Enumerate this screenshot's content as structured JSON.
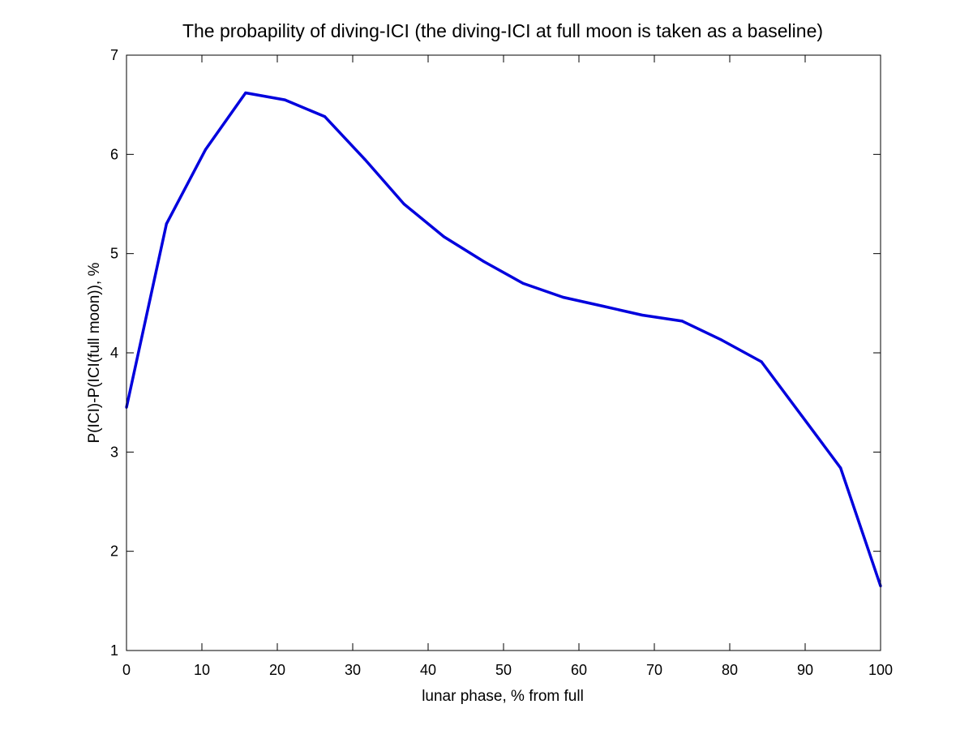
{
  "chart_data": {
    "type": "line",
    "title": "The probapility of diving-ICI (the diving-ICI at full moon is taken as a baseline)",
    "xlabel": "lunar phase, % from full",
    "ylabel": "P(ICI)-P(ICI(full moon)), %",
    "xlim": [
      0,
      100
    ],
    "ylim": [
      1,
      7
    ],
    "xticks": [
      0,
      10,
      20,
      30,
      40,
      50,
      60,
      70,
      80,
      90,
      100
    ],
    "yticks": [
      1,
      2,
      3,
      4,
      5,
      6,
      7
    ],
    "grid": false,
    "series": [
      {
        "name": "P(ICI)-P(ICI(full moon))",
        "color": "#0000dd",
        "x": [
          0,
          5.3,
          10.5,
          15.8,
          21.0,
          26.3,
          31.6,
          36.8,
          42.1,
          47.4,
          52.6,
          57.9,
          63.2,
          68.4,
          73.7,
          78.9,
          84.2,
          89.5,
          94.7,
          100
        ],
        "y": [
          3.45,
          5.3,
          6.05,
          6.62,
          6.55,
          6.38,
          5.95,
          5.5,
          5.17,
          4.92,
          4.7,
          4.56,
          4.47,
          4.38,
          4.32,
          4.13,
          3.91,
          3.37,
          2.84,
          1.65
        ]
      }
    ]
  }
}
